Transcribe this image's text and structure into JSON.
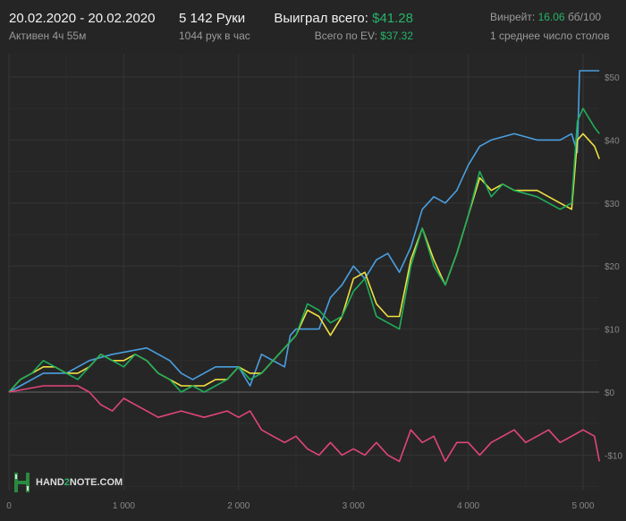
{
  "header": {
    "date_range": "20.02.2020 - 20.02.2020",
    "active": "Активен 4ч 55м",
    "hands": "5 142 Руки",
    "hands_per_hour": "1044 рук в час",
    "won_label": "Выиграл всего:",
    "won_value": "$41.28",
    "ev_label": "Всего по EV:",
    "ev_value": "$37.32",
    "winrate_label": "Винрейт:",
    "winrate_value": "16.06",
    "winrate_unit": "бб/100",
    "tables": "1 среднее число столов"
  },
  "logo": {
    "text_a": "HAND",
    "text_2": "2",
    "text_b": "NOTE.COM"
  },
  "colors": {
    "accent": "#27b36a",
    "blue": "#4a9fe0",
    "green": "#1fae5a",
    "yellow": "#f0e040",
    "pink": "#e0457a"
  },
  "chart_data": {
    "type": "line",
    "xlim": [
      0,
      5142
    ],
    "ylim": [
      -13,
      52
    ],
    "x_ticks": [
      0,
      1000,
      2000,
      3000,
      4000,
      5000
    ],
    "x_tick_labels": [
      "0",
      "1 000",
      "2 000",
      "3 000",
      "4 000",
      "5 000"
    ],
    "y_ticks": [
      -10,
      0,
      10,
      20,
      30,
      40,
      50
    ],
    "y_tick_labels": [
      "-$10",
      "$0",
      "$10",
      "$20",
      "$30",
      "$40",
      "$50"
    ],
    "grid": true,
    "series": [
      {
        "color": "#4a9fe0",
        "points": [
          [
            0,
            0
          ],
          [
            100,
            1
          ],
          [
            300,
            3
          ],
          [
            500,
            3
          ],
          [
            700,
            5
          ],
          [
            900,
            6
          ],
          [
            1200,
            7
          ],
          [
            1400,
            5
          ],
          [
            1500,
            3
          ],
          [
            1600,
            2
          ],
          [
            1800,
            4
          ],
          [
            2000,
            4
          ],
          [
            2100,
            1
          ],
          [
            2200,
            6
          ],
          [
            2300,
            5
          ],
          [
            2400,
            4
          ],
          [
            2450,
            9
          ],
          [
            2500,
            10
          ],
          [
            2700,
            10
          ],
          [
            2800,
            15
          ],
          [
            2900,
            17
          ],
          [
            3000,
            20
          ],
          [
            3100,
            18
          ],
          [
            3200,
            21
          ],
          [
            3300,
            22
          ],
          [
            3400,
            19
          ],
          [
            3500,
            23
          ],
          [
            3600,
            29
          ],
          [
            3700,
            31
          ],
          [
            3800,
            30
          ],
          [
            3900,
            32
          ],
          [
            4000,
            36
          ],
          [
            4100,
            39
          ],
          [
            4200,
            40
          ],
          [
            4400,
            41
          ],
          [
            4600,
            40
          ],
          [
            4800,
            40
          ],
          [
            4900,
            41
          ],
          [
            4950,
            38
          ],
          [
            4970,
            51
          ],
          [
            5142,
            51
          ]
        ]
      },
      {
        "color": "#f0e040",
        "points": [
          [
            0,
            0
          ],
          [
            100,
            2
          ],
          [
            200,
            3
          ],
          [
            300,
            4
          ],
          [
            400,
            4
          ],
          [
            500,
            3
          ],
          [
            600,
            3
          ],
          [
            700,
            4
          ],
          [
            800,
            6
          ],
          [
            900,
            5
          ],
          [
            1000,
            5
          ],
          [
            1100,
            6
          ],
          [
            1200,
            5
          ],
          [
            1300,
            3
          ],
          [
            1400,
            2
          ],
          [
            1500,
            1
          ],
          [
            1600,
            1
          ],
          [
            1700,
            1
          ],
          [
            1800,
            2
          ],
          [
            1900,
            2
          ],
          [
            2000,
            4
          ],
          [
            2100,
            3
          ],
          [
            2200,
            3
          ],
          [
            2300,
            5
          ],
          [
            2400,
            7
          ],
          [
            2500,
            9
          ],
          [
            2600,
            13
          ],
          [
            2700,
            12
          ],
          [
            2800,
            9
          ],
          [
            2900,
            12
          ],
          [
            3000,
            18
          ],
          [
            3100,
            19
          ],
          [
            3200,
            14
          ],
          [
            3300,
            12
          ],
          [
            3400,
            12
          ],
          [
            3500,
            21
          ],
          [
            3600,
            26
          ],
          [
            3700,
            21
          ],
          [
            3800,
            17
          ],
          [
            3900,
            22
          ],
          [
            4000,
            28
          ],
          [
            4100,
            34
          ],
          [
            4200,
            32
          ],
          [
            4300,
            33
          ],
          [
            4400,
            32
          ],
          [
            4600,
            32
          ],
          [
            4800,
            30
          ],
          [
            4900,
            29
          ],
          [
            4950,
            40
          ],
          [
            5000,
            41
          ],
          [
            5100,
            39
          ],
          [
            5142,
            37
          ]
        ]
      },
      {
        "color": "#1fae5a",
        "points": [
          [
            0,
            0
          ],
          [
            100,
            2
          ],
          [
            200,
            3
          ],
          [
            300,
            5
          ],
          [
            400,
            4
          ],
          [
            500,
            3
          ],
          [
            600,
            2
          ],
          [
            700,
            4
          ],
          [
            800,
            6
          ],
          [
            900,
            5
          ],
          [
            1000,
            4
          ],
          [
            1100,
            6
          ],
          [
            1200,
            5
          ],
          [
            1300,
            3
          ],
          [
            1400,
            2
          ],
          [
            1500,
            0
          ],
          [
            1600,
            1
          ],
          [
            1700,
            0
          ],
          [
            1800,
            1
          ],
          [
            1900,
            2
          ],
          [
            2000,
            4
          ],
          [
            2100,
            2
          ],
          [
            2200,
            3
          ],
          [
            2300,
            5
          ],
          [
            2400,
            7
          ],
          [
            2500,
            9
          ],
          [
            2600,
            14
          ],
          [
            2700,
            13
          ],
          [
            2800,
            11
          ],
          [
            2900,
            12
          ],
          [
            3000,
            16
          ],
          [
            3100,
            18
          ],
          [
            3200,
            12
          ],
          [
            3300,
            11
          ],
          [
            3400,
            10
          ],
          [
            3500,
            20
          ],
          [
            3600,
            26
          ],
          [
            3700,
            20
          ],
          [
            3800,
            17
          ],
          [
            3900,
            22
          ],
          [
            4000,
            28
          ],
          [
            4100,
            35
          ],
          [
            4200,
            31
          ],
          [
            4300,
            33
          ],
          [
            4400,
            32
          ],
          [
            4600,
            31
          ],
          [
            4800,
            29
          ],
          [
            4900,
            30
          ],
          [
            4950,
            43
          ],
          [
            5000,
            45
          ],
          [
            5100,
            42
          ],
          [
            5142,
            41
          ]
        ]
      },
      {
        "color": "#e0457a",
        "points": [
          [
            0,
            0
          ],
          [
            300,
            1
          ],
          [
            600,
            1
          ],
          [
            700,
            0
          ],
          [
            800,
            -2
          ],
          [
            900,
            -3
          ],
          [
            1000,
            -1
          ],
          [
            1100,
            -2
          ],
          [
            1200,
            -3
          ],
          [
            1300,
            -4
          ],
          [
            1500,
            -3
          ],
          [
            1700,
            -4
          ],
          [
            1900,
            -3
          ],
          [
            2000,
            -4
          ],
          [
            2100,
            -3
          ],
          [
            2200,
            -6
          ],
          [
            2300,
            -7
          ],
          [
            2400,
            -8
          ],
          [
            2500,
            -7
          ],
          [
            2600,
            -9
          ],
          [
            2700,
            -10
          ],
          [
            2800,
            -8
          ],
          [
            2900,
            -10
          ],
          [
            3000,
            -9
          ],
          [
            3100,
            -10
          ],
          [
            3200,
            -8
          ],
          [
            3300,
            -10
          ],
          [
            3400,
            -11
          ],
          [
            3500,
            -6
          ],
          [
            3600,
            -8
          ],
          [
            3700,
            -7
          ],
          [
            3800,
            -11
          ],
          [
            3900,
            -8
          ],
          [
            4000,
            -8
          ],
          [
            4100,
            -10
          ],
          [
            4200,
            -8
          ],
          [
            4300,
            -7
          ],
          [
            4400,
            -6
          ],
          [
            4500,
            -8
          ],
          [
            4700,
            -6
          ],
          [
            4800,
            -8
          ],
          [
            4900,
            -7
          ],
          [
            5000,
            -6
          ],
          [
            5100,
            -7
          ],
          [
            5142,
            -11
          ]
        ]
      }
    ]
  }
}
